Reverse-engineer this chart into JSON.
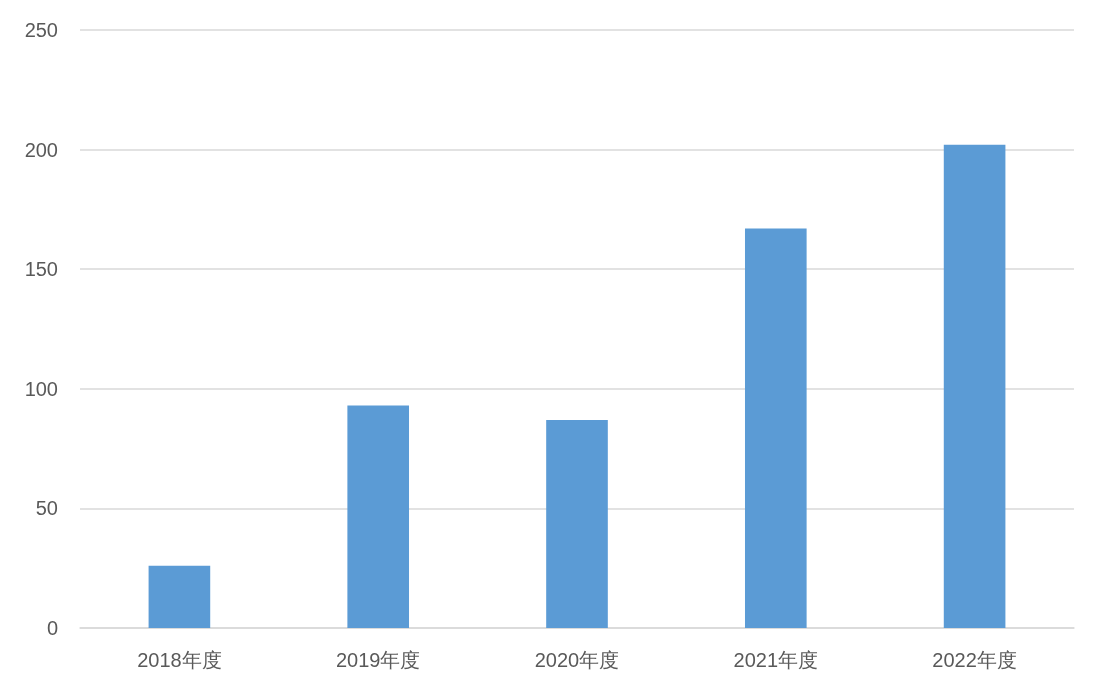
{
  "chart_data": {
    "type": "bar",
    "categories": [
      "2018年度",
      "2019年度",
      "2020年度",
      "2021年度",
      "2022年度"
    ],
    "values": [
      26,
      93,
      87,
      167,
      202
    ],
    "color": "#5b9bd5",
    "ylim": [
      0,
      250
    ],
    "yticks": [
      0,
      50,
      100,
      150,
      200,
      250
    ],
    "grid": "y"
  }
}
